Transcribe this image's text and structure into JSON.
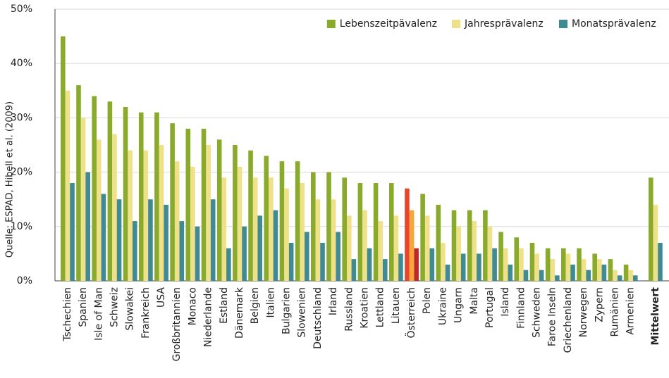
{
  "chart_data": {
    "type": "bar",
    "y_axis_label": "Quelle: ESPAD, Hibell et al. (2009)",
    "categories": [
      "Tschechien",
      "Spanien",
      "Isle of Man",
      "Schweiz",
      "Slowakei",
      "Frankreich",
      "USA",
      "Großbritannien",
      "Monaco",
      "Niederlande",
      "Estland",
      "Dänemark",
      "Belgien",
      "Italien",
      "Bulgarien",
      "Slowenien",
      "Deutschland",
      "Irland",
      "Russland",
      "Kroatien",
      "Lettland",
      "Litauen",
      "Österreich",
      "Polen",
      "Ukraine",
      "Ungarn",
      "Malta",
      "Portugal",
      "Island",
      "Finnland",
      "Schweden",
      "Faroe Inseln",
      "Griechenland",
      "Norwegen",
      "Zypern",
      "Rumänien",
      "Armenien",
      "Mittelwert"
    ],
    "series": [
      {
        "name": "Lebenszeitpävalenz",
        "color": "#8aaa2c",
        "highlight_color": "#e8452a",
        "values": [
          45,
          36,
          34,
          33,
          32,
          31,
          31,
          29,
          28,
          28,
          26,
          25,
          24,
          23,
          22,
          22,
          20,
          20,
          19,
          18,
          18,
          18,
          17,
          16,
          14,
          13,
          13,
          13,
          9,
          8,
          7,
          6,
          6,
          6,
          5,
          4,
          3,
          19
        ]
      },
      {
        "name": "Jahresprävalenz",
        "color": "#efe08a",
        "highlight_color": "#f7a63a",
        "values": [
          35,
          30,
          26,
          27,
          24,
          24,
          25,
          22,
          21,
          25,
          19,
          21,
          19,
          19,
          17,
          18,
          15,
          15,
          12,
          13,
          11,
          12,
          13,
          12,
          7,
          10,
          11,
          10,
          6,
          6,
          5,
          4,
          5,
          4,
          4,
          2,
          2,
          14
        ]
      },
      {
        "name": "Monatsprävalenz",
        "color": "#3f8a93",
        "highlight_color": "#c0282e",
        "values": [
          18,
          20,
          16,
          15,
          11,
          15,
          14,
          11,
          10,
          15,
          6,
          10,
          12,
          13,
          7,
          9,
          7,
          9,
          4,
          6,
          4,
          5,
          6,
          6,
          3,
          5,
          5,
          6,
          3,
          2,
          2,
          1,
          3,
          2,
          3,
          1,
          1,
          7
        ]
      }
    ],
    "highlight_category": "Österreich",
    "bold_category": "Mittelwert",
    "ylim": [
      0,
      50
    ],
    "yticks": [
      {
        "value": 0,
        "label": "0%"
      },
      {
        "value": 10,
        "label": "10%"
      },
      {
        "value": 20,
        "label": "20%"
      },
      {
        "value": 30,
        "label": "30%"
      },
      {
        "value": 40,
        "label": "40%"
      },
      {
        "value": 50,
        "label": "50%"
      }
    ],
    "grid": true,
    "legend": "top-right"
  }
}
